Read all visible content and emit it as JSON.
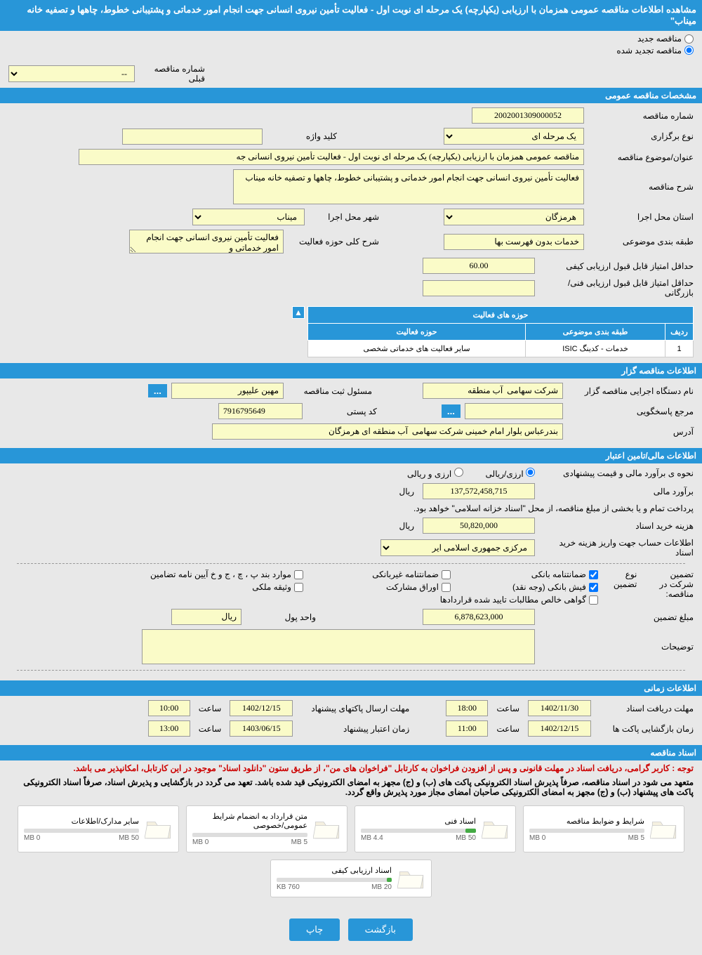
{
  "page_title": "مشاهده اطلاعات مناقصه عمومی همزمان با ارزیابی (یکپارچه) یک مرحله ای نوبت اول - فعالیت تأمین نیروی انسانی جهت انجام امور خدماتی و پشتیبانی خطوط، چاهها و تصفیه خانه میناب\"",
  "radios": {
    "new_tender": "مناقصه جدید",
    "renewed_tender": "مناقصه تجدید شده"
  },
  "prev_tender": {
    "label": "شماره مناقصه قبلی",
    "value": "--"
  },
  "sections": {
    "general": "مشخصات مناقصه عمومی",
    "organizer": "اطلاعات مناقصه گزار",
    "financial": "اطلاعات مالی/تامین اعتبار",
    "timing": "اطلاعات زمانی",
    "documents": "اسناد مناقصه"
  },
  "general": {
    "tender_no_label": "شماره مناقصه",
    "tender_no": "2002001309000052",
    "type_label": "نوع برگزاری",
    "type": "یک مرحله ای",
    "keyword_label": "کلید واژه",
    "keyword": "",
    "subject_label": "عنوان/موضوع مناقصه",
    "subject": "مناقصه عمومی همزمان با ارزیابی (یکپارچه) یک مرحله ای نوبت اول - فعالیت تأمین نیروی انسانی جه",
    "desc_label": "شرح مناقصه",
    "desc": "فعالیت تأمین نیروی انسانی جهت انجام امور خدماتی و پشتیبانی خطوط، چاهها و تصفیه خانه میناب",
    "province_label": "استان محل اجرا",
    "province": "هرمزگان",
    "city_label": "شهر محل اجرا",
    "city": "میناب",
    "category_label": "طبقه بندی موضوعی",
    "category": "خدمات بدون فهرست بها",
    "scope_label": "شرح کلی حوزه فعالیت",
    "scope": "فعالیت تأمین نیروی انسانی جهت انجام امور خدماتی و",
    "min_quality_label": "حداقل امتیاز قابل قبول ارزیابی کیفی",
    "min_quality": "60.00",
    "min_tech_label": "حداقل امتیاز قابل قبول ارزیابی فنی/بازرگانی",
    "min_tech": ""
  },
  "activity_table": {
    "title": "حوزه های فعالیت",
    "h_row": "ردیف",
    "h_category": "طبقه بندی موضوعی",
    "h_scope": "حوزه فعالیت",
    "row_no": "1",
    "row_cat": "خدمات - کدینگ ISIC",
    "row_scope": "سایر فعالیت های خدماتی شخصی"
  },
  "organizer": {
    "org_label": "نام دستگاه اجرایی مناقصه گزار",
    "org": "شرکت سهامی  آب منطقه",
    "registrar_label": "مسئول ثبت مناقصه",
    "registrar": "مهین علیپور",
    "responder_label": "مرجع پاسخگویی",
    "responder": "",
    "postal_label": "کد پستی",
    "postal": "7916795649",
    "address_label": "آدرس",
    "address": "بندرعباس بلوار امام خمینی شرکت سهامی  آب منطقه ای هرمزگان"
  },
  "financial": {
    "estimate_method_label": "نحوه ی برآورد مالی و قیمت پیشنهادی",
    "currency_opt1": "ارزی/ریالی",
    "currency_opt2": "ارزی و ریالی",
    "estimate_label": "برآورد مالی",
    "estimate": "137,572,458,715",
    "unit_rial": "ریال",
    "treasury_note": "پرداخت تمام و یا بخشی از مبلغ مناقصه، از محل \"اسناد خزانه اسلامی\" خواهد بود.",
    "doc_fee_label": "هزینه خرید اسناد",
    "doc_fee": "50,820,000",
    "account_label": "اطلاعات حساب جهت واریز هزینه خرید اسناد",
    "account": "مرکزی جمهوری اسلامی ایر",
    "guarantee_label": "تضمین شرکت در مناقصه:",
    "guarantee_type_label": "نوع تضمین",
    "chk_bank": "ضمانتنامه بانکی",
    "chk_nonbank": "ضمانتنامه غیربانکی",
    "chk_bond": "موارد بند پ ، چ ، ج و خ آیین نامه تضامین",
    "chk_cash": "فیش بانکی (وجه نقد)",
    "chk_shares": "اوراق مشارکت",
    "chk_property": "وثیقه ملکی",
    "chk_claims": "گواهی خالص مطالبات تایید شده قراردادها",
    "guarantee_amt_label": "مبلغ تضمین",
    "guarantee_amt": "6,878,623,000",
    "currency_unit_label": "واحد پول",
    "currency_unit": "ریال",
    "notes_label": "توضیحات",
    "notes": ""
  },
  "timing": {
    "doc_deadline_label": "مهلت دریافت اسناد",
    "doc_deadline_date": "1402/11/30",
    "doc_deadline_time": "18:00",
    "submit_deadline_label": "مهلت ارسال پاکتهای پیشنهاد",
    "submit_deadline_date": "1402/12/15",
    "submit_deadline_time": "10:00",
    "open_label": "زمان بازگشایی پاکت ها",
    "open_date": "1402/12/15",
    "open_time": "11:00",
    "validity_label": "زمان اعتبار پیشنهاد",
    "validity_date": "1403/06/15",
    "validity_time": "13:00",
    "time_label": "ساعت"
  },
  "documents": {
    "note1": "توجه : کاربر گرامی، دریافت اسناد در مهلت قانونی و پس از افزودن فراخوان به کارتابل \"فراخوان های من\"، از طریق ستون \"دانلود اسناد\" موجود در این کارتابل، امکانپذیر می باشد.",
    "note2": "متعهد می شود در اسناد مناقصه، صرفاً پذیرش اسناد الکترونیکی پاکت های (ب) و (ج) مجهز به امضای الکترونیکی قید شده باشد. تعهد می گردد در بازگشایی و پذیرش اسناد، صرفاً اسناد الکترونیکی پاکت های پیشنهاد (ب) و (ج) مجهز به امضای الکترونیکی صاحبان امضای مجاز مورد پذیرش واقع گردد.",
    "docs": [
      {
        "title": "شرایط و ضوابط مناقصه",
        "used": "0 MB",
        "max": "5 MB",
        "pct": 0
      },
      {
        "title": "اسناد فنی",
        "used": "4.4 MB",
        "max": "50 MB",
        "pct": 9
      },
      {
        "title": "متن قرارداد به انضمام شرایط عمومی/خصوصی",
        "used": "0 MB",
        "max": "5 MB",
        "pct": 0
      },
      {
        "title": "سایر مدارک/اطلاعات",
        "used": "0 MB",
        "max": "50 MB",
        "pct": 0
      },
      {
        "title": "اسناد ارزیابی کیفی",
        "used": "760 KB",
        "max": "20 MB",
        "pct": 4
      }
    ]
  },
  "buttons": {
    "back": "بازگشت",
    "print": "چاپ"
  },
  "colors": {
    "header_bg": "#2896d8",
    "input_bg": "#fafbc8",
    "page_bg": "#e8e8e8"
  }
}
